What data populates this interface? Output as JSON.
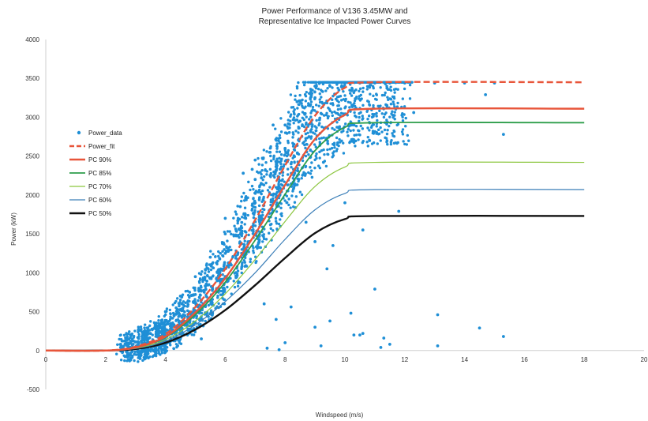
{
  "chart_data": {
    "type": "scatter",
    "title": [
      "Power Performance of V136 3.45MW and",
      "Representative Ice Impacted Power Curves"
    ],
    "xlabel": "Windspeed (m/s)",
    "ylabel": "Power (kW)",
    "xlim": [
      0,
      20
    ],
    "ylim": [
      -500,
      4000
    ],
    "x_ticks": [
      "0",
      "2",
      "4",
      "6",
      "8",
      "10",
      "12",
      "14",
      "16",
      "18",
      "20"
    ],
    "y_ticks": [
      "-500",
      "0",
      "500",
      "1000",
      "1500",
      "2000",
      "2500",
      "3000",
      "3500",
      "4000"
    ],
    "grid": false,
    "legend_position": "left",
    "series": [
      {
        "name": "Power_data",
        "kind": "scatter",
        "color": "#1f8fd6",
        "note_points": "dense cloud around the Power_fit curve; sample points listed",
        "points": [
          [
            2.5,
            40
          ],
          [
            3.0,
            110
          ],
          [
            3.5,
            220
          ],
          [
            4.0,
            330
          ],
          [
            4.5,
            520
          ],
          [
            5.0,
            720
          ],
          [
            5.5,
            930
          ],
          [
            6.0,
            1250
          ],
          [
            6.5,
            1550
          ],
          [
            7.0,
            1900
          ],
          [
            7.5,
            2250
          ],
          [
            8.0,
            2600
          ],
          [
            8.5,
            2950
          ],
          [
            9.0,
            3250
          ],
          [
            9.5,
            3400
          ],
          [
            10.0,
            3440
          ],
          [
            3.2,
            60
          ],
          [
            3.8,
            170
          ],
          [
            4.2,
            300
          ],
          [
            4.8,
            480
          ],
          [
            5.2,
            650
          ],
          [
            5.8,
            900
          ],
          [
            6.2,
            1100
          ],
          [
            6.8,
            1400
          ],
          [
            7.2,
            1700
          ],
          [
            7.8,
            2050
          ],
          [
            8.2,
            2400
          ],
          [
            8.8,
            2750
          ],
          [
            9.2,
            3050
          ],
          [
            9.8,
            3350
          ],
          [
            10.5,
            3440
          ],
          [
            11.0,
            3440
          ],
          [
            4.0,
            500
          ],
          [
            4.5,
            700
          ],
          [
            5.0,
            950
          ],
          [
            5.5,
            1200
          ],
          [
            6.0,
            1500
          ],
          [
            6.5,
            1850
          ],
          [
            7.0,
            2200
          ],
          [
            7.5,
            2550
          ],
          [
            8.0,
            2900
          ],
          [
            8.5,
            3200
          ],
          [
            9.0,
            3400
          ],
          [
            7.0,
            2450
          ],
          [
            6.6,
            2280
          ],
          [
            6.0,
            1700
          ],
          [
            8.4,
            3200
          ],
          [
            7.6,
            2900
          ],
          [
            6.9,
            2330
          ],
          [
            11.5,
            3440
          ],
          [
            12.0,
            3440
          ],
          [
            13.0,
            3440
          ],
          [
            14.0,
            3440
          ],
          [
            15.0,
            3440
          ],
          [
            8.7,
            1650
          ],
          [
            9.0,
            1400
          ],
          [
            9.4,
            1050
          ],
          [
            9.6,
            1350
          ],
          [
            10.0,
            1900
          ],
          [
            10.6,
            1550
          ],
          [
            11.0,
            790
          ],
          [
            11.3,
            160
          ],
          [
            10.2,
            480
          ],
          [
            10.5,
            200
          ],
          [
            9.5,
            380
          ],
          [
            9.0,
            300
          ],
          [
            8.2,
            560
          ],
          [
            8.0,
            100
          ],
          [
            7.4,
            30
          ],
          [
            7.8,
            10
          ],
          [
            9.2,
            60
          ],
          [
            10.3,
            200
          ],
          [
            10.6,
            220
          ],
          [
            11.8,
            1790
          ],
          [
            13.1,
            460
          ],
          [
            13.1,
            60
          ],
          [
            14.5,
            290
          ],
          [
            15.3,
            180
          ],
          [
            15.3,
            2780
          ],
          [
            14.7,
            3290
          ],
          [
            11.2,
            40
          ],
          [
            11.5,
            80
          ],
          [
            12.3,
            3060
          ],
          [
            7.3,
            600
          ],
          [
            7.7,
            400
          ],
          [
            5.2,
            150
          ]
        ]
      },
      {
        "name": "Power_fit",
        "kind": "line",
        "style": "dashed",
        "color": "#e8553a",
        "points": [
          [
            0,
            0
          ],
          [
            2,
            0
          ],
          [
            3,
            50
          ],
          [
            4,
            210
          ],
          [
            5,
            560
          ],
          [
            6,
            1050
          ],
          [
            7,
            1680
          ],
          [
            8,
            2380
          ],
          [
            9,
            3020
          ],
          [
            10,
            3380
          ],
          [
            11,
            3450
          ],
          [
            18,
            3450
          ]
        ]
      },
      {
        "name": "PC 90%",
        "kind": "line",
        "color": "#e8553a",
        "points": [
          [
            0,
            0
          ],
          [
            2,
            0
          ],
          [
            3,
            40
          ],
          [
            4,
            180
          ],
          [
            5,
            490
          ],
          [
            6,
            930
          ],
          [
            7,
            1500
          ],
          [
            8,
            2130
          ],
          [
            9,
            2720
          ],
          [
            10,
            3030
          ],
          [
            11,
            3110
          ],
          [
            18,
            3110
          ]
        ]
      },
      {
        "name": "PC 85%",
        "kind": "line",
        "color": "#2e9e4b",
        "points": [
          [
            0,
            0
          ],
          [
            2,
            0
          ],
          [
            3,
            40
          ],
          [
            4,
            170
          ],
          [
            5,
            460
          ],
          [
            6,
            880
          ],
          [
            7,
            1420
          ],
          [
            8,
            2010
          ],
          [
            9,
            2570
          ],
          [
            10,
            2870
          ],
          [
            11,
            2930
          ],
          [
            18,
            2930
          ]
        ]
      },
      {
        "name": "PC 70%",
        "kind": "line",
        "color": "#8cc63f",
        "points": [
          [
            0,
            0
          ],
          [
            2,
            0
          ],
          [
            3,
            30
          ],
          [
            4,
            140
          ],
          [
            5,
            380
          ],
          [
            6,
            730
          ],
          [
            7,
            1170
          ],
          [
            8,
            1660
          ],
          [
            9,
            2110
          ],
          [
            10,
            2360
          ],
          [
            11,
            2420
          ],
          [
            18,
            2420
          ]
        ]
      },
      {
        "name": "PC 60%",
        "kind": "line",
        "color": "#3c7fb8",
        "points": [
          [
            0,
            0
          ],
          [
            2,
            0
          ],
          [
            3,
            25
          ],
          [
            4,
            120
          ],
          [
            5,
            330
          ],
          [
            6,
            630
          ],
          [
            7,
            1000
          ],
          [
            8,
            1430
          ],
          [
            9,
            1810
          ],
          [
            10,
            2020
          ],
          [
            11,
            2070
          ],
          [
            18,
            2070
          ]
        ]
      },
      {
        "name": "PC 50%",
        "kind": "line",
        "color": "#111111",
        "points": [
          [
            0,
            0
          ],
          [
            2,
            0
          ],
          [
            3,
            20
          ],
          [
            4,
            100
          ],
          [
            5,
            270
          ],
          [
            6,
            520
          ],
          [
            7,
            840
          ],
          [
            8,
            1190
          ],
          [
            9,
            1510
          ],
          [
            10,
            1690
          ],
          [
            11,
            1730
          ],
          [
            18,
            1730
          ]
        ]
      }
    ]
  }
}
